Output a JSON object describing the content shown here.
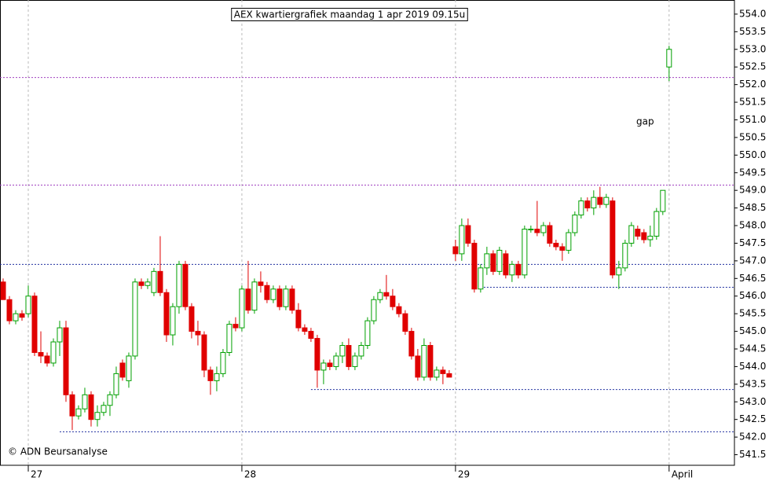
{
  "chart_data": {
    "type": "candlestick",
    "title": "AEX kwartiergrafiek maandag 1 apr 2019 09.15u",
    "annotations": [
      "gap"
    ],
    "copyright": "© ADN Beursanalyse",
    "up_color": "#00a000",
    "down_color": "#e00000",
    "grid": true,
    "x": [
      0,
      1,
      2,
      3,
      4,
      5,
      6,
      7,
      8,
      9,
      10,
      11,
      12,
      13,
      14,
      15,
      16,
      17,
      18,
      19,
      20,
      21,
      22,
      23,
      24,
      25,
      26,
      27,
      28,
      29,
      30,
      31,
      32,
      33,
      34,
      35,
      36,
      37,
      38,
      39,
      40,
      41,
      42,
      43,
      44,
      45,
      46,
      47,
      48,
      49,
      50,
      51,
      52,
      53,
      54,
      55,
      56,
      57,
      58,
      59,
      60,
      61,
      62,
      63,
      64,
      65,
      66,
      67,
      68,
      69,
      70,
      71,
      72,
      73,
      74,
      75,
      76,
      77,
      78,
      79,
      80,
      81,
      82,
      83,
      84,
      85,
      86,
      87,
      88,
      89,
      90,
      91,
      92,
      93,
      94,
      95,
      96,
      97,
      98,
      99,
      100,
      101,
      102,
      103,
      104,
      105,
      106
    ],
    "open": [
      546.4,
      545.9,
      545.3,
      545.5,
      545.5,
      546.0,
      544.4,
      544.3,
      544.1,
      544.7,
      545.1,
      543.2,
      542.6,
      542.8,
      543.2,
      542.5,
      542.7,
      542.9,
      543.2,
      544.1,
      543.6,
      544.3,
      546.4,
      546.3,
      546.1,
      546.7,
      546.1,
      544.9,
      545.7,
      546.9,
      545.7,
      545.0,
      544.9,
      543.9,
      543.6,
      543.8,
      544.4,
      545.2,
      545.1,
      546.2,
      545.6,
      546.4,
      546.3,
      545.9,
      546.2,
      545.7,
      546.2,
      545.6,
      545.1,
      545.0,
      544.8,
      543.9,
      544.1,
      544.0,
      544.3,
      544.6,
      544.0,
      544.3,
      544.6,
      545.3,
      545.9,
      546.1,
      546.0,
      545.7,
      545.5,
      545.0,
      544.3,
      543.7,
      544.6,
      543.7,
      543.9,
      543.8,
      547.4,
      547.2,
      548.0,
      547.5,
      546.2,
      546.8,
      547.2,
      546.7,
      547.2,
      546.6,
      546.9,
      546.6,
      547.9,
      547.9,
      547.8,
      548.0,
      547.5,
      547.4,
      547.3,
      547.8,
      548.3,
      548.7,
      548.5,
      548.8,
      548.6,
      548.7,
      546.6,
      546.8,
      547.5,
      547.9,
      547.8,
      547.6,
      547.7,
      548.4,
      552.5
    ],
    "high": [
      546.5,
      546.0,
      545.6,
      545.6,
      546.3,
      546.1,
      545.0,
      544.4,
      544.8,
      545.3,
      545.3,
      543.3,
      542.9,
      543.4,
      543.3,
      542.9,
      543.0,
      543.3,
      544.0,
      544.2,
      544.4,
      546.5,
      546.5,
      546.5,
      546.8,
      547.7,
      546.2,
      545.8,
      547.0,
      547.0,
      545.8,
      545.3,
      545.0,
      544.0,
      544.0,
      544.5,
      545.3,
      545.4,
      546.3,
      547.0,
      546.5,
      546.7,
      546.4,
      546.3,
      546.3,
      546.3,
      546.3,
      545.8,
      545.2,
      545.1,
      544.9,
      544.2,
      544.2,
      544.4,
      544.7,
      544.8,
      544.4,
      544.7,
      545.4,
      546.0,
      546.2,
      546.6,
      546.2,
      545.8,
      545.6,
      545.1,
      544.5,
      544.8,
      544.7,
      544.0,
      544.0,
      543.9,
      547.6,
      548.2,
      548.2,
      547.6,
      546.9,
      547.4,
      547.3,
      547.4,
      547.3,
      547.0,
      547.0,
      548.0,
      548.0,
      548.7,
      548.1,
      548.1,
      547.6,
      547.5,
      547.9,
      548.4,
      548.8,
      548.8,
      549.0,
      549.1,
      548.9,
      548.8,
      547.0,
      547.6,
      548.1,
      548.0,
      547.9,
      548.0,
      548.5,
      549.0,
      553.1
    ],
    "low": [
      545.9,
      545.2,
      545.2,
      545.3,
      545.4,
      544.3,
      544.1,
      544.0,
      544.0,
      544.3,
      543.0,
      542.2,
      542.5,
      542.7,
      542.3,
      542.3,
      542.6,
      542.6,
      543.1,
      543.6,
      543.4,
      544.2,
      546.2,
      546.2,
      546.0,
      546.0,
      544.7,
      544.6,
      545.5,
      545.6,
      544.8,
      544.6,
      543.7,
      543.2,
      543.3,
      543.7,
      544.3,
      545.0,
      545.0,
      545.5,
      545.5,
      546.1,
      545.8,
      545.8,
      545.6,
      545.6,
      545.5,
      545.0,
      544.9,
      544.7,
      543.4,
      543.5,
      543.9,
      543.9,
      544.1,
      543.9,
      543.9,
      544.2,
      544.5,
      545.2,
      545.8,
      545.9,
      545.6,
      545.4,
      544.9,
      544.2,
      543.6,
      543.6,
      543.6,
      543.6,
      543.5,
      543.7,
      547.0,
      547.0,
      547.4,
      546.1,
      546.1,
      546.6,
      546.6,
      546.6,
      546.5,
      546.4,
      546.5,
      546.5,
      547.8,
      547.7,
      547.7,
      547.4,
      547.3,
      547.0,
      547.2,
      547.7,
      548.2,
      548.4,
      548.3,
      548.5,
      548.5,
      546.5,
      546.2,
      546.7,
      547.4,
      547.6,
      547.5,
      547.4,
      547.6,
      548.3,
      552.1
    ],
    "close": [
      545.9,
      545.3,
      545.5,
      545.4,
      546.0,
      544.4,
      544.3,
      544.1,
      544.7,
      545.1,
      543.2,
      542.6,
      542.8,
      543.2,
      542.5,
      542.7,
      542.9,
      543.2,
      543.8,
      543.7,
      544.3,
      546.4,
      546.3,
      546.4,
      546.7,
      546.1,
      544.9,
      545.7,
      546.9,
      545.7,
      545.0,
      544.9,
      543.9,
      543.6,
      543.8,
      544.4,
      545.2,
      545.1,
      546.2,
      545.6,
      546.4,
      546.3,
      545.9,
      546.2,
      545.7,
      546.2,
      545.6,
      545.1,
      545.0,
      544.8,
      543.9,
      544.1,
      544.0,
      544.3,
      544.6,
      544.0,
      544.3,
      544.6,
      545.3,
      545.9,
      546.1,
      546.0,
      545.7,
      545.5,
      545.0,
      544.3,
      543.7,
      544.6,
      543.7,
      543.9,
      543.8,
      543.7,
      547.2,
      548.0,
      547.5,
      546.2,
      546.8,
      547.2,
      546.7,
      547.3,
      546.6,
      546.9,
      546.6,
      547.9,
      547.9,
      547.8,
      548.0,
      547.5,
      547.4,
      547.3,
      547.8,
      548.3,
      548.7,
      548.5,
      548.8,
      548.6,
      548.8,
      546.6,
      546.8,
      547.5,
      548.0,
      547.7,
      547.6,
      547.7,
      548.4,
      549.0,
      553.0
    ],
    "xlim": [
      -0.5,
      116.4
    ],
    "xticks": [
      {
        "value": 4,
        "label": "27"
      },
      {
        "value": 38,
        "label": "28"
      },
      {
        "value": 72,
        "label": "29"
      },
      {
        "value": 106,
        "label": "April"
      }
    ],
    "ylim": [
      541.2,
      554.4
    ],
    "yticks": [
      541.5,
      {
        "value": 542,
        "label": "542.0"
      },
      542.5,
      {
        "value": 543,
        "label": "543.0"
      },
      543.5,
      {
        "value": 544,
        "label": "544.0"
      },
      544.5,
      {
        "value": 545,
        "label": "545.0"
      },
      545.5,
      {
        "value": 546,
        "label": "546.0"
      },
      546.5,
      {
        "value": 547,
        "label": "547.0"
      },
      547.5,
      {
        "value": 548,
        "label": "548.0"
      },
      548.5,
      {
        "value": 549,
        "label": "549.0"
      },
      549.5,
      {
        "value": 550,
        "label": "550.0"
      },
      550.5,
      {
        "value": 551,
        "label": "551.0"
      },
      551.5,
      {
        "value": 552,
        "label": "552.0"
      },
      552.5,
      {
        "value": 553,
        "label": "553.0"
      },
      553.5,
      {
        "value": 554,
        "label": "554.0"
      }
    ],
    "hlines": [
      {
        "value": 552.2,
        "x0": -0.5,
        "color": "#a040c0"
      },
      {
        "value": 549.15,
        "x0": -0.5,
        "color": "#a040c0"
      },
      {
        "value": 546.9,
        "x0": -0.5,
        "color": "#2030a0"
      },
      {
        "value": 546.25,
        "x0": 76,
        "color": "#2030a0"
      },
      {
        "value": 543.35,
        "x0": 49,
        "color": "#2030a0"
      },
      {
        "value": 542.15,
        "x0": 9,
        "color": "#2030a0"
      }
    ]
  }
}
